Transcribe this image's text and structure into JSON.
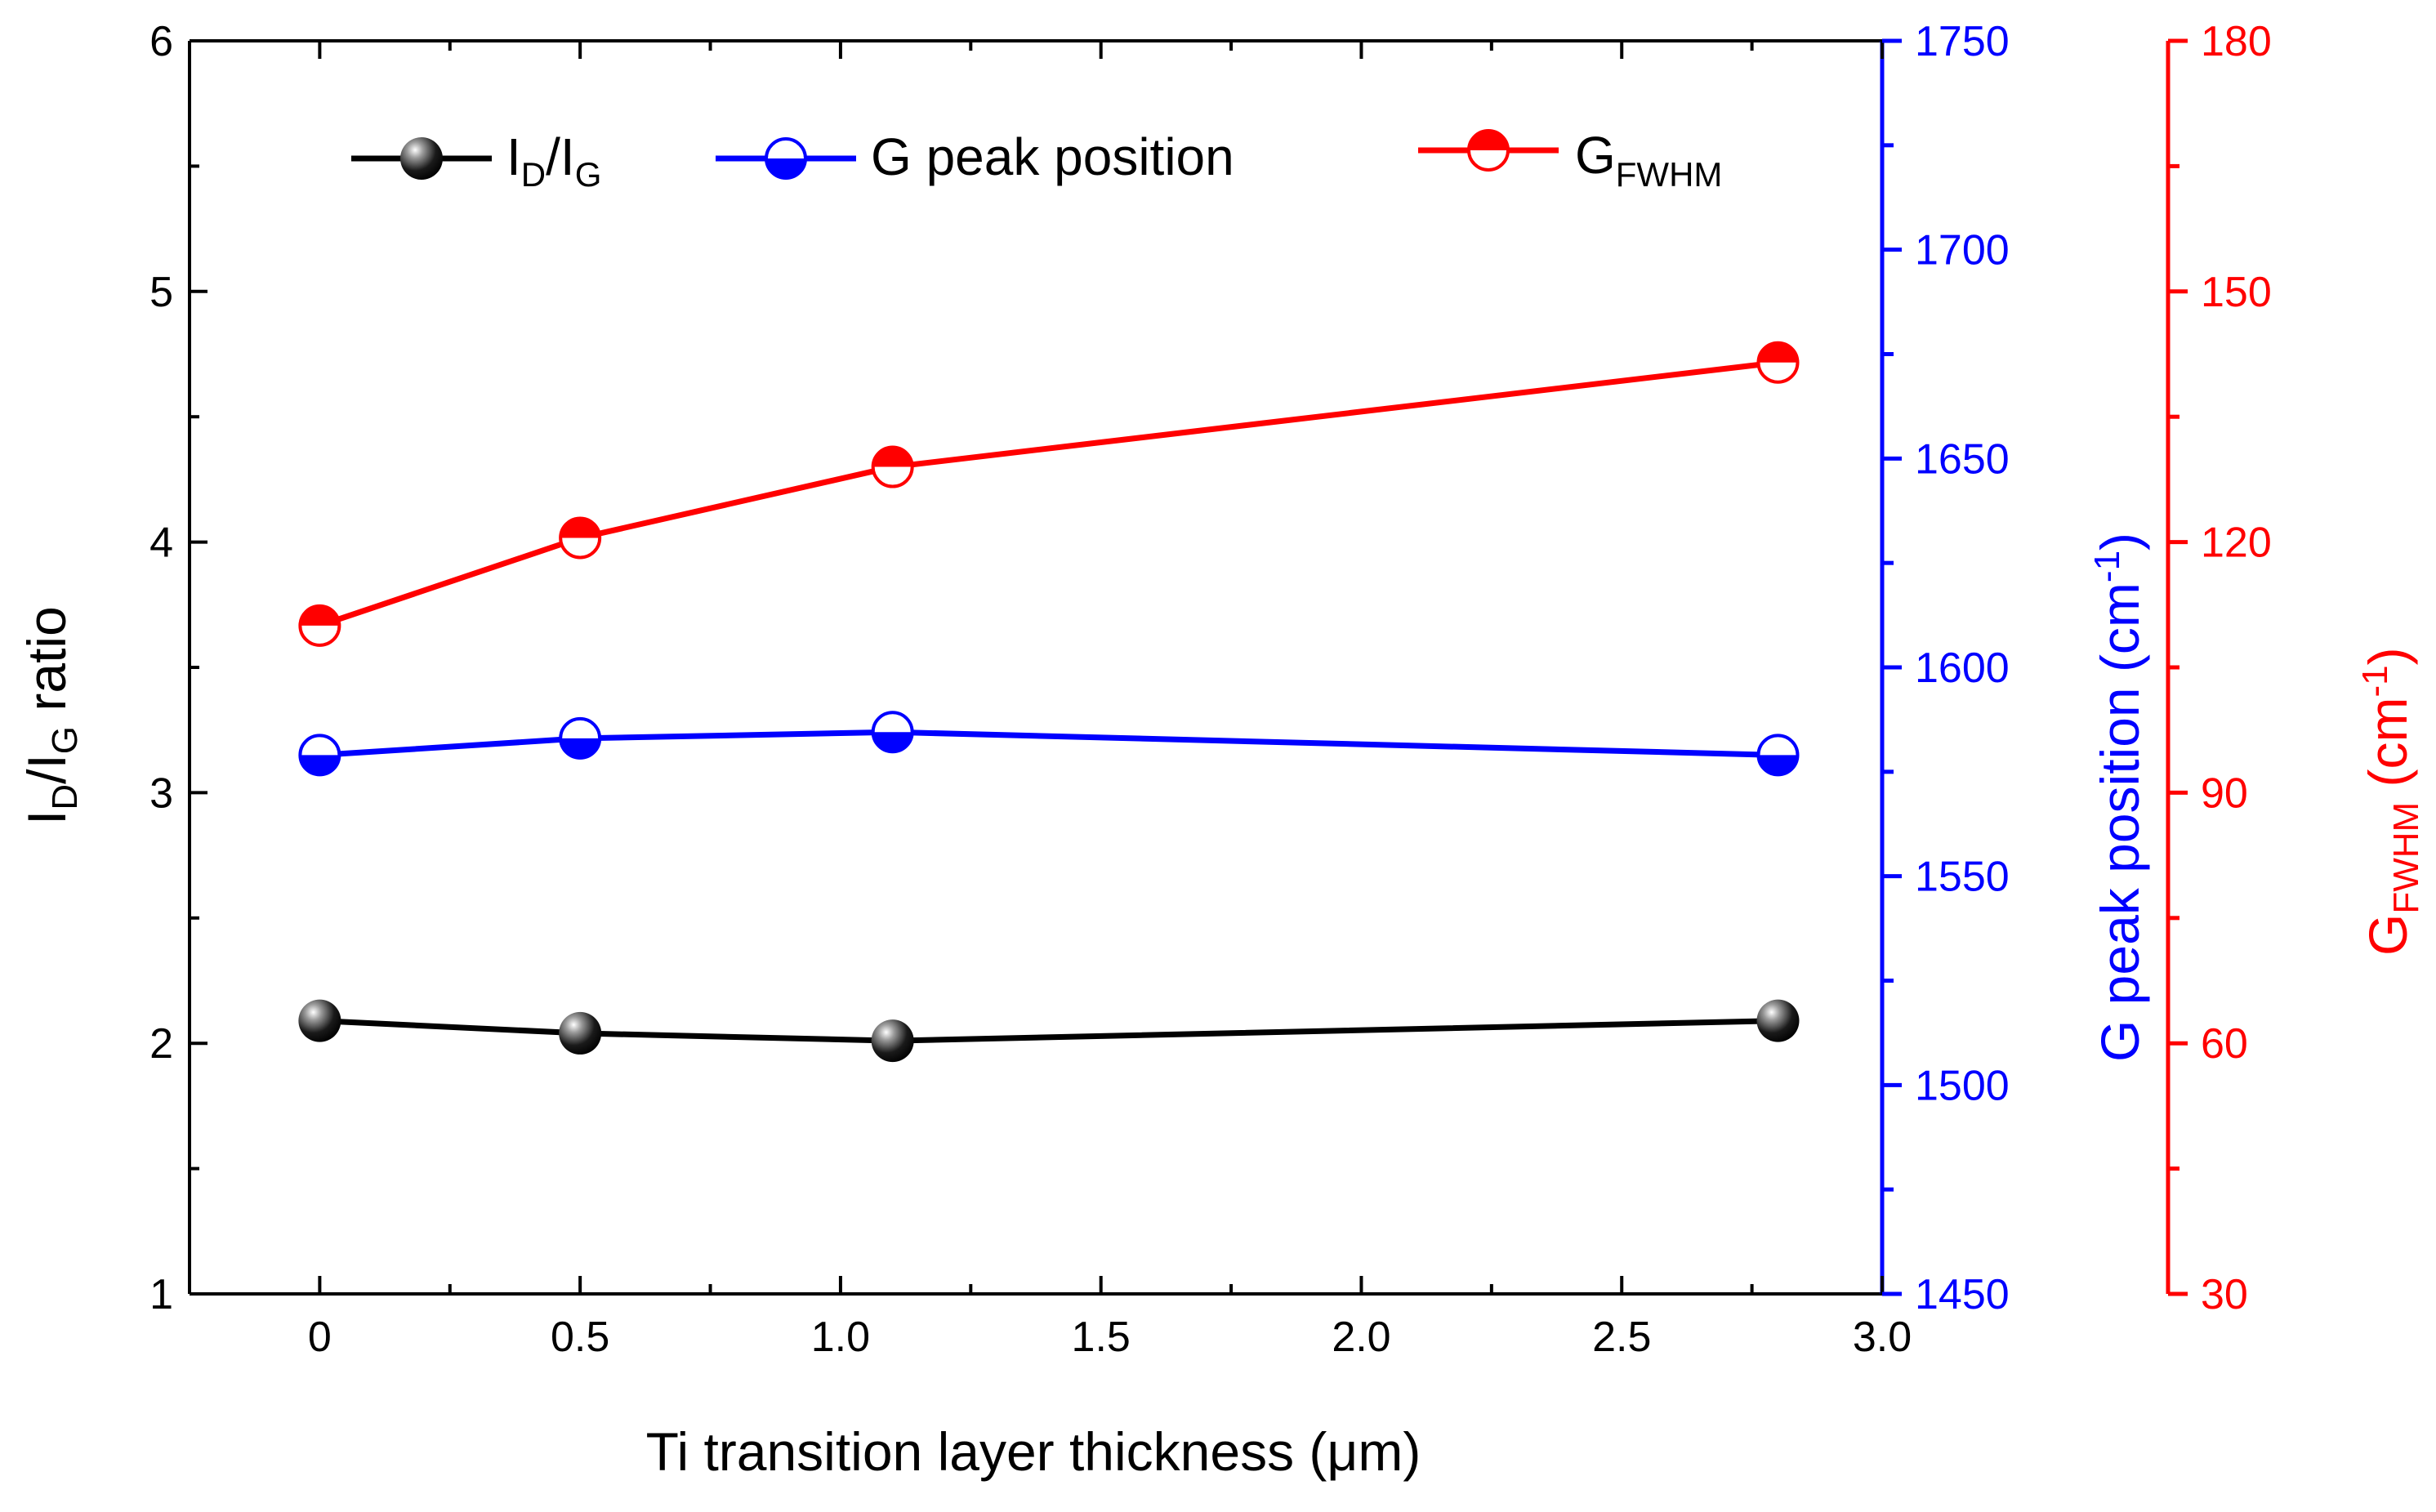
{
  "chart_data": {
    "type": "line",
    "x": [
      0,
      0.5,
      1.1,
      2.8
    ],
    "xlabel": "Ti transition layer thickness (μm)",
    "xlim": [
      -0.25,
      3.0
    ],
    "xticks": [
      "0",
      "0.5",
      "1.0",
      "1.5",
      "2.0",
      "2.5",
      "3.0"
    ],
    "series": [
      {
        "name": "I_D/I_G",
        "legend_main": "I",
        "legend_sub1": "D",
        "legend_mid": "/I",
        "legend_sub2": "G",
        "axis": "left",
        "color": "#000000",
        "marker": "filled-sphere",
        "values": [
          2.09,
          2.04,
          2.01,
          2.09
        ]
      },
      {
        "name": "G peak position",
        "legend_label": "G peak position",
        "axis": "right1",
        "color": "#0000ff",
        "marker": "half-filled-bottom",
        "values": [
          1579,
          1583,
          1584.5,
          1579
        ]
      },
      {
        "name": "G_FWHM",
        "legend_main": "G",
        "legend_sub": "FWHM",
        "axis": "right2",
        "color": "#ff0000",
        "marker": "half-filled-top",
        "values": [
          110,
          120.5,
          129,
          141.5
        ]
      }
    ],
    "axes": {
      "left": {
        "label_main": "I",
        "label_sub1": "D",
        "label_mid": "/I",
        "label_sub2": "G",
        "label_tail": " ratio",
        "ylim": [
          1,
          6
        ],
        "ticks": [
          "1",
          "2",
          "3",
          "4",
          "5",
          "6"
        ],
        "color": "#000000"
      },
      "right1": {
        "label_main": "G peak position (cm",
        "label_sup": "-1",
        "label_tail": ")",
        "ylim": [
          1450,
          1750
        ],
        "ticks": [
          "1450",
          "1500",
          "1550",
          "1600",
          "1650",
          "1700",
          "1750"
        ],
        "color": "#0000ff"
      },
      "right2": {
        "label_main": "G",
        "label_sub": "FWHM",
        "label_mid": " (cm",
        "label_sup": "-1",
        "label_tail": ")",
        "ylim": [
          30,
          180
        ],
        "ticks": [
          "30",
          "60",
          "90",
          "120",
          "150",
          "180"
        ],
        "color": "#ff0000"
      }
    },
    "legend_position": "top"
  }
}
